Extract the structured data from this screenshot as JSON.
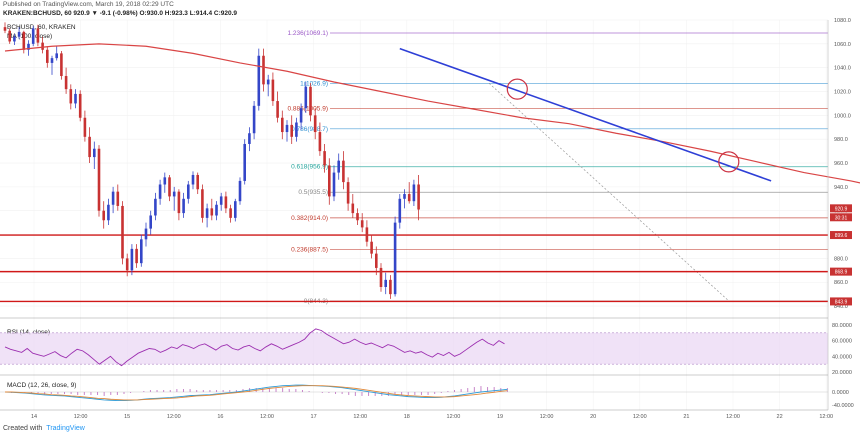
{
  "header": {
    "published": "Published on TradingView.com, March 19, 2018 02:29 UTC",
    "ohlc": "KRAKEN:BCHUSD, 60  920.9  ▼ -9.1 (-0.98%)  O:930.0  H:923.3  L:914.4  C:920.9",
    "symbol": "BCHUSD, 60, KRAKEN",
    "ma": "MA (100, close)",
    "rsi": "RSI (14, close)",
    "macd": "MACD (12, 26, close, 9)"
  },
  "footer": {
    "created_with": "Created with",
    "brand": "TradingView"
  },
  "colors": {
    "up": "#3446c8",
    "down": "#c83232",
    "ma": "#d94545",
    "trend": "#2e3fd6",
    "support": "#d01818",
    "rsi": "#9c2fb0",
    "rsi_band": "#e9d5f3",
    "macd": "#2d9bd6",
    "signal": "#e08a3c",
    "hist": "#c785c9",
    "circle": "#cc3344"
  },
  "chart_data": {
    "type": "candlestick",
    "y_axis": {
      "min": 830,
      "max": 1080,
      "ticks": [
        "840.0",
        "860.0",
        "880.0",
        "900.0",
        "920.0",
        "940.0",
        "960.0",
        "980.0",
        "1000.0",
        "1020.0",
        "1040.0",
        "1060.0",
        "1080.0"
      ]
    },
    "x_axis": {
      "ticks": [
        "14",
        "12:00",
        "15",
        "12:00",
        "16",
        "12:00",
        "17",
        "12:00",
        "18",
        "12:00",
        "19",
        "12:00",
        "20",
        "12:00",
        "21",
        "12:00",
        "22",
        "12:00"
      ]
    },
    "price_tags": [
      {
        "label": "920.9",
        "value": 922.0,
        "color": "#c83232"
      },
      {
        "label": "30:31",
        "value": 914.5,
        "color": "#c83232"
      },
      {
        "label": "899.6",
        "value": 899.6,
        "color": "#c83232"
      },
      {
        "label": "868.9",
        "value": 868.9,
        "color": "#c83232"
      },
      {
        "label": "843.9",
        "value": 843.9,
        "color": "#c83232"
      }
    ],
    "support_levels": [
      899.6,
      868.9,
      843.9
    ],
    "fib_levels": [
      {
        "label": "1.236(1069.1)",
        "value": 1069.1,
        "color": "#9b59c7"
      },
      {
        "label": "1(1026.9)",
        "value": 1026.9,
        "color": "#2e8fd1"
      },
      {
        "label": "0.886(1005.9)",
        "value": 1005.9,
        "color": "#c0392b"
      },
      {
        "label": "0.786(988.7)",
        "value": 988.7,
        "color": "#2e8fd1"
      },
      {
        "label": "0.618(956.9)",
        "value": 956.9,
        "color": "#21a39a"
      },
      {
        "label": "0.5(935.5)",
        "value": 935.5,
        "color": "#888888"
      },
      {
        "label": "0.382(914.0)",
        "value": 914.0,
        "color": "#c0392b"
      },
      {
        "label": "0.236(887.5)",
        "value": 887.5,
        "color": "#c0392b"
      },
      {
        "label": "0(844.3)",
        "value": 844.3,
        "color": "#888888"
      }
    ],
    "trendline": {
      "start": {
        "bar": 84,
        "value": 1056
      },
      "end": {
        "bar": 163,
        "value": 945
      }
    },
    "circles": [
      {
        "bar": 109,
        "value": 1022
      },
      {
        "bar": 154,
        "value": 961
      }
    ],
    "ohlc": [
      [
        1074,
        1078,
        1069,
        1071
      ],
      [
        1071,
        1073,
        1060,
        1062
      ],
      [
        1062,
        1068,
        1059,
        1066
      ],
      [
        1066,
        1074,
        1064,
        1070
      ],
      [
        1070,
        1071,
        1052,
        1055
      ],
      [
        1055,
        1063,
        1050,
        1060
      ],
      [
        1060,
        1075,
        1058,
        1073
      ],
      [
        1073,
        1076,
        1058,
        1061
      ],
      [
        1061,
        1066,
        1052,
        1055
      ],
      [
        1055,
        1058,
        1040,
        1044
      ],
      [
        1044,
        1050,
        1034,
        1048
      ],
      [
        1048,
        1058,
        1046,
        1052
      ],
      [
        1052,
        1054,
        1030,
        1033
      ],
      [
        1033,
        1040,
        1018,
        1022
      ],
      [
        1022,
        1026,
        1005,
        1010
      ],
      [
        1010,
        1022,
        1006,
        1018
      ],
      [
        1018,
        1021,
        995,
        998
      ],
      [
        998,
        1004,
        978,
        982
      ],
      [
        982,
        990,
        960,
        965
      ],
      [
        965,
        978,
        955,
        972
      ],
      [
        972,
        975,
        915,
        920
      ],
      [
        920,
        928,
        905,
        912
      ],
      [
        912,
        930,
        908,
        925
      ],
      [
        925,
        940,
        918,
        936
      ],
      [
        936,
        942,
        920,
        924
      ],
      [
        924,
        928,
        875,
        880
      ],
      [
        880,
        884,
        865,
        870
      ],
      [
        870,
        892,
        866,
        888
      ],
      [
        888,
        892,
        872,
        876
      ],
      [
        876,
        900,
        873,
        896
      ],
      [
        896,
        910,
        890,
        905
      ],
      [
        905,
        920,
        900,
        916
      ],
      [
        916,
        935,
        912,
        930
      ],
      [
        930,
        946,
        925,
        942
      ],
      [
        942,
        952,
        935,
        948
      ],
      [
        948,
        950,
        928,
        932
      ],
      [
        932,
        940,
        920,
        936
      ],
      [
        936,
        938,
        912,
        918
      ],
      [
        918,
        935,
        914,
        930
      ],
      [
        930,
        945,
        926,
        942
      ],
      [
        942,
        953,
        938,
        950
      ],
      [
        950,
        952,
        934,
        938
      ],
      [
        938,
        942,
        910,
        914
      ],
      [
        914,
        926,
        906,
        922
      ],
      [
        922,
        930,
        912,
        916
      ],
      [
        916,
        928,
        912,
        925
      ],
      [
        925,
        935,
        920,
        932
      ],
      [
        932,
        936,
        918,
        922
      ],
      [
        922,
        925,
        910,
        914
      ],
      [
        914,
        930,
        911,
        928
      ],
      [
        928,
        948,
        925,
        945
      ],
      [
        945,
        980,
        942,
        976
      ],
      [
        976,
        990,
        970,
        985
      ],
      [
        985,
        1012,
        980,
        1008
      ],
      [
        1008,
        1056,
        1004,
        1050
      ],
      [
        1050,
        1056,
        1020,
        1026
      ],
      [
        1026,
        1034,
        1016,
        1030
      ],
      [
        1030,
        1036,
        1008,
        1012
      ],
      [
        1012,
        1020,
        994,
        998
      ],
      [
        998,
        1004,
        980,
        986
      ],
      [
        986,
        996,
        978,
        992
      ],
      [
        992,
        1000,
        976,
        982
      ],
      [
        982,
        998,
        978,
        994
      ],
      [
        994,
        1010,
        988,
        1006
      ],
      [
        1006,
        1028,
        1002,
        1024
      ],
      [
        1024,
        1027,
        995,
        1000
      ],
      [
        1000,
        1006,
        980,
        986
      ],
      [
        986,
        994,
        966,
        970
      ],
      [
        970,
        976,
        952,
        958
      ],
      [
        958,
        964,
        925,
        932
      ],
      [
        932,
        958,
        928,
        952
      ],
      [
        952,
        968,
        946,
        962
      ],
      [
        962,
        970,
        938,
        944
      ],
      [
        944,
        948,
        920,
        926
      ],
      [
        926,
        934,
        914,
        918
      ],
      [
        918,
        922,
        908,
        912
      ],
      [
        912,
        918,
        902,
        906
      ],
      [
        906,
        912,
        890,
        894
      ],
      [
        894,
        900,
        880,
        884
      ],
      [
        884,
        890,
        866,
        872
      ],
      [
        872,
        876,
        852,
        856
      ],
      [
        856,
        868,
        850,
        862
      ],
      [
        862,
        866,
        846,
        850
      ],
      [
        850,
        915,
        848,
        910
      ],
      [
        910,
        934,
        905,
        930
      ],
      [
        930,
        938,
        922,
        934
      ],
      [
        934,
        944,
        926,
        928
      ],
      [
        928,
        946,
        924,
        942
      ],
      [
        942,
        950,
        912,
        921
      ]
    ],
    "ma_points": [
      [
        0,
        1054
      ],
      [
        10,
        1058
      ],
      [
        20,
        1060
      ],
      [
        30,
        1058
      ],
      [
        40,
        1052
      ],
      [
        50,
        1044
      ],
      [
        60,
        1037
      ],
      [
        70,
        1028
      ],
      [
        80,
        1020
      ],
      [
        90,
        1012
      ],
      [
        100,
        1005
      ],
      [
        110,
        998
      ],
      [
        120,
        993
      ],
      [
        130,
        985
      ],
      [
        140,
        978
      ],
      [
        150,
        970
      ],
      [
        160,
        961
      ],
      [
        170,
        952
      ],
      [
        180,
        945
      ],
      [
        188,
        938
      ],
      [
        192,
        934
      ]
    ],
    "rsi": {
      "min": 20,
      "max": 80,
      "band": [
        30,
        70
      ],
      "ticks": [
        "20.0000",
        "40.0000",
        "60.0000",
        "80.0000"
      ],
      "values": [
        52,
        49,
        47,
        45,
        50,
        44,
        42,
        40,
        43,
        46,
        41,
        38,
        44,
        49,
        47,
        42,
        36,
        30,
        35,
        40,
        33,
        28,
        34,
        39,
        44,
        47,
        50,
        49,
        45,
        48,
        52,
        50,
        55,
        53,
        50,
        54,
        56,
        52,
        48,
        53,
        55,
        50,
        48,
        52,
        54,
        50,
        47,
        52,
        56,
        53,
        49,
        52,
        55,
        58,
        62,
        70,
        75,
        73,
        68,
        64,
        60,
        56,
        58,
        62,
        58,
        55,
        57,
        54,
        51,
        55,
        53,
        49,
        45,
        47,
        44,
        46,
        42,
        39,
        44,
        41,
        45,
        40,
        43,
        48,
        53,
        58,
        62,
        57,
        54,
        60,
        56
      ]
    },
    "macd": {
      "ticks": [
        "0.0000",
        "-40.0000"
      ],
      "macd": [
        0,
        -1,
        -2,
        -3,
        -5,
        -7,
        -9,
        -10,
        -11,
        -12,
        -14,
        -16,
        -18,
        -20,
        -22,
        -24,
        -25,
        -26,
        -26,
        -25,
        -24,
        -22,
        -20,
        -19,
        -18,
        -17,
        -15,
        -13,
        -11,
        -10,
        -9,
        -8,
        -6,
        -4,
        -2,
        0,
        3,
        6,
        9,
        12,
        15,
        17,
        19,
        20,
        21,
        21,
        20,
        19,
        18,
        17,
        15,
        13,
        10,
        7,
        4,
        1,
        -2,
        -5,
        -8,
        -10,
        -12,
        -14,
        -15,
        -16,
        -17,
        -17,
        -16,
        -14,
        -12,
        -9,
        -6,
        -3,
        0,
        2,
        4,
        6,
        8
      ],
      "signal": [
        0,
        0,
        -1,
        -2,
        -3,
        -5,
        -6,
        -8,
        -9,
        -10,
        -12,
        -13,
        -15,
        -17,
        -19,
        -20,
        -22,
        -23,
        -24,
        -24,
        -24,
        -23,
        -22,
        -21,
        -20,
        -19,
        -18,
        -16,
        -14,
        -12,
        -11,
        -10,
        -8,
        -6,
        -4,
        -2,
        0,
        2,
        5,
        8,
        11,
        13,
        15,
        17,
        18,
        19,
        19,
        19,
        19,
        18,
        17,
        15,
        13,
        11,
        8,
        5,
        2,
        -1,
        -4,
        -7,
        -9,
        -11,
        -12,
        -13,
        -14,
        -15,
        -15,
        -15,
        -14,
        -12,
        -10,
        -8,
        -6,
        -3,
        -1,
        2,
        4
      ],
      "hist": [
        0,
        -1,
        -1,
        -1,
        -2,
        -2,
        -3,
        -2,
        -2,
        -2,
        -2,
        -3,
        -3,
        -3,
        -3,
        -4,
        -3,
        -3,
        -2,
        -1,
        0,
        1,
        2,
        2,
        2,
        2,
        3,
        3,
        3,
        2,
        2,
        2,
        2,
        2,
        2,
        2,
        3,
        4,
        4,
        4,
        4,
        4,
        4,
        3,
        3,
        2,
        1,
        0,
        -1,
        -1,
        -2,
        -2,
        -3,
        -4,
        -4,
        -4,
        -4,
        -4,
        -4,
        -3,
        -3,
        -3,
        -3,
        -3,
        -3,
        -2,
        -1,
        1,
        2,
        3,
        4,
        5,
        6,
        5,
        5,
        4,
        4
      ]
    }
  }
}
